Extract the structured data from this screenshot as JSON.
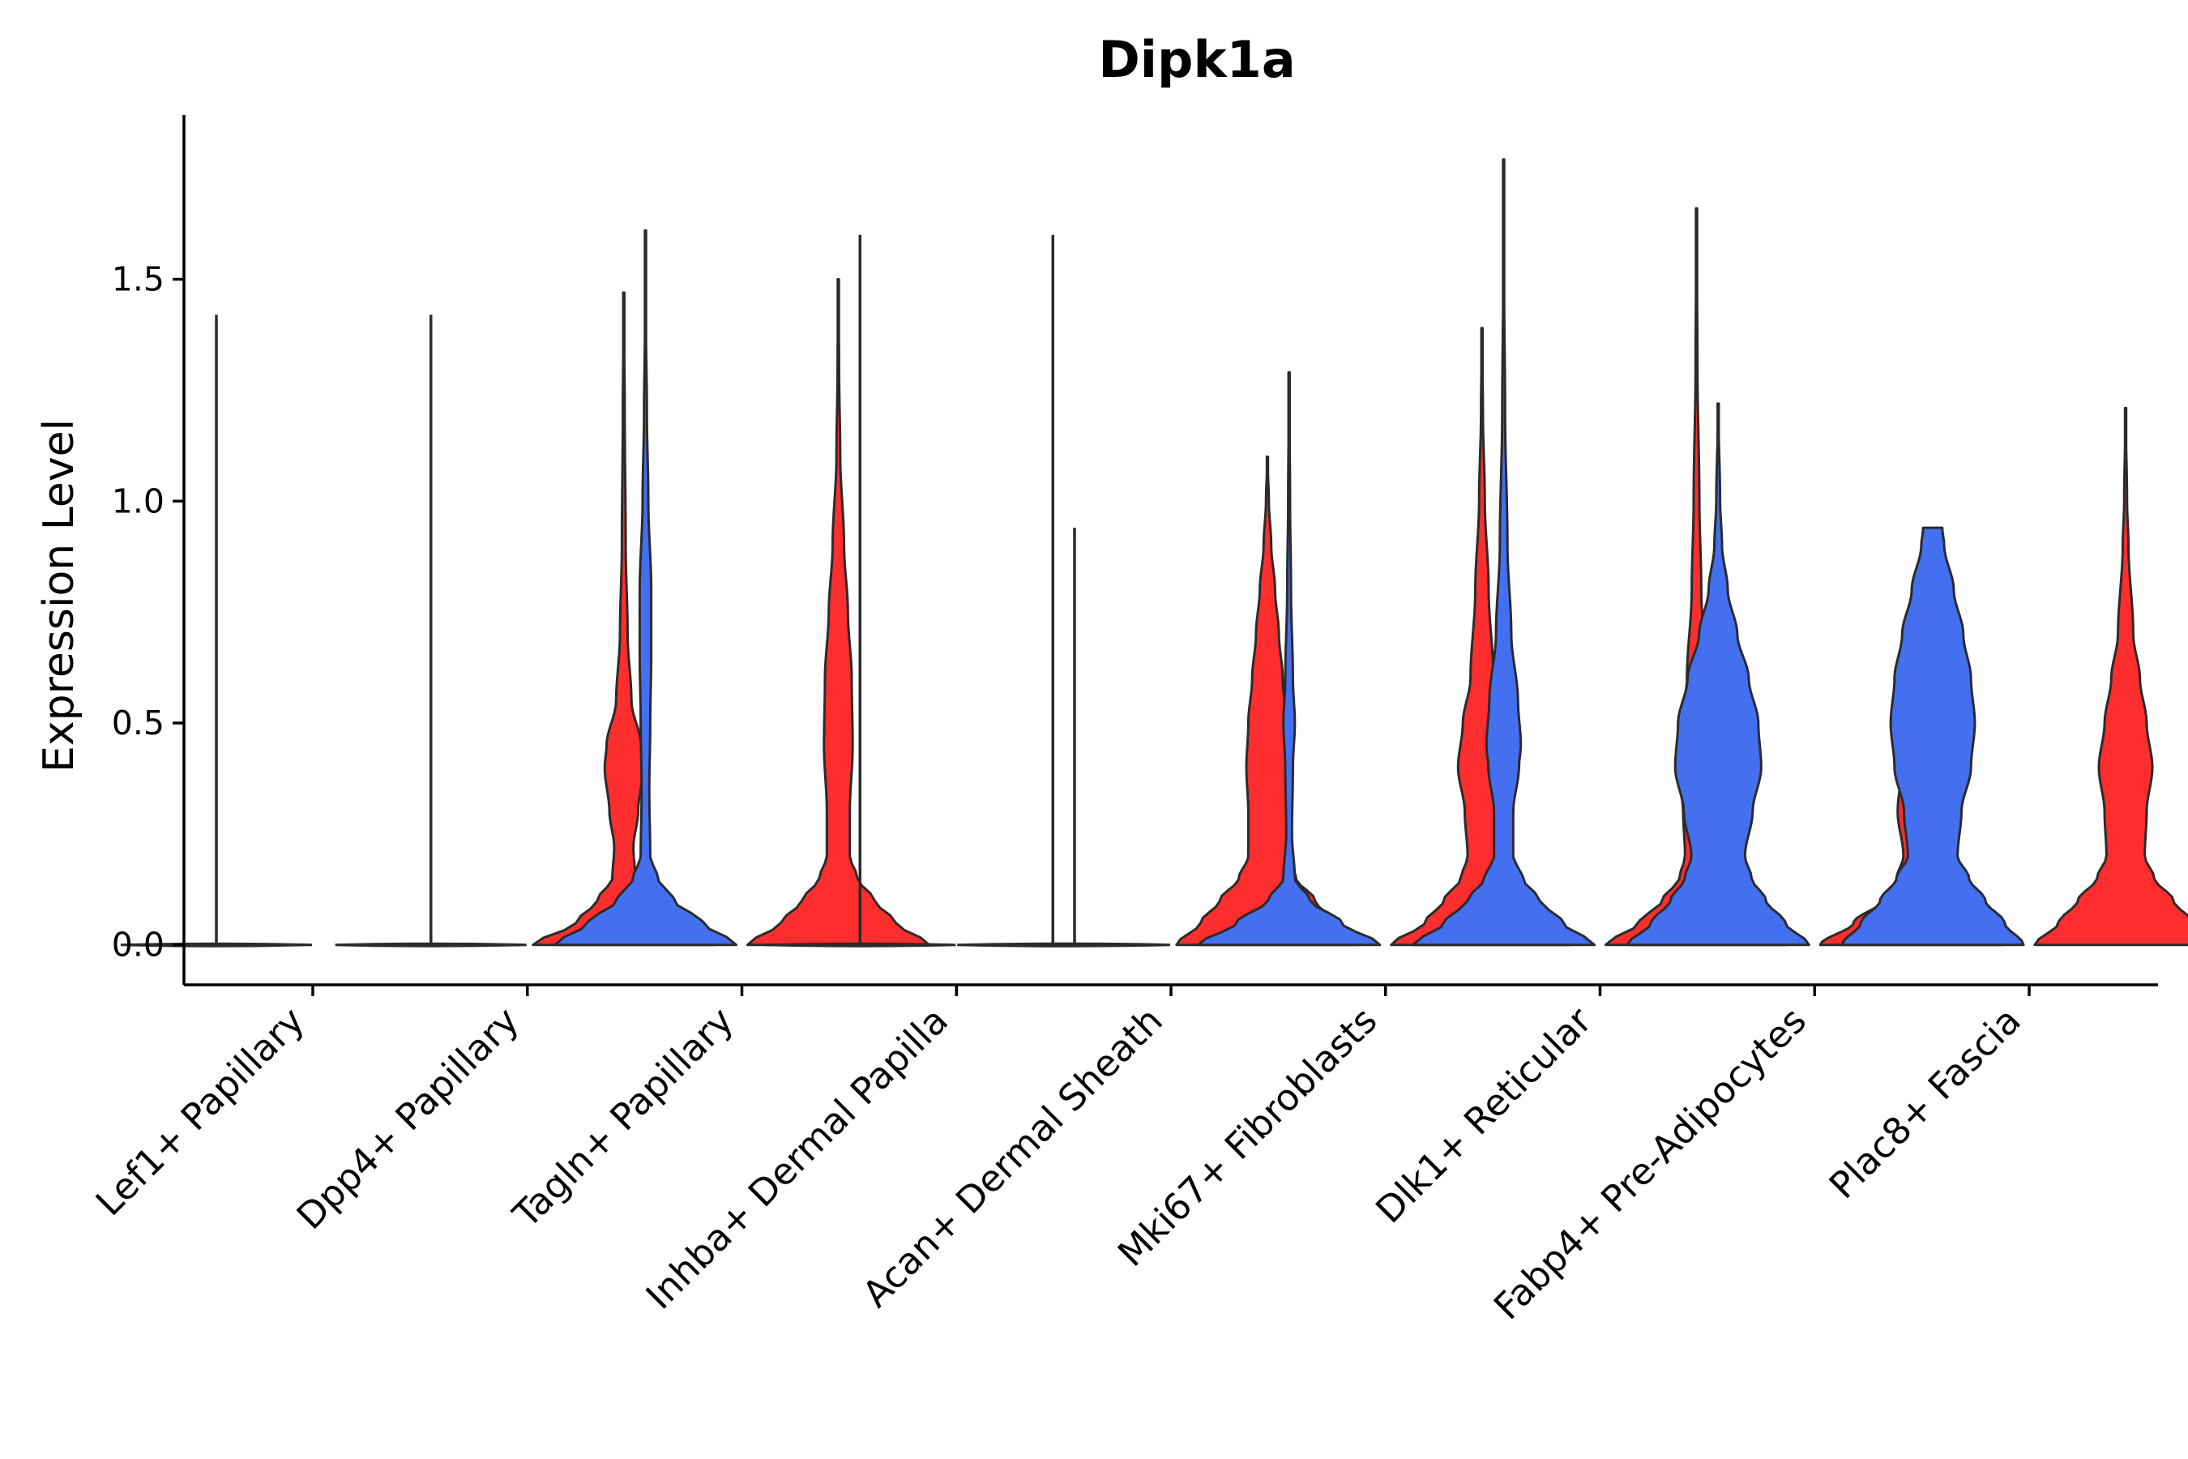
{
  "chart_data": {
    "type": "violin",
    "title": "Dipk1a",
    "xlabel": "",
    "ylabel": "Expression Level",
    "ylim": [
      -0.09,
      1.87
    ],
    "yticks": [
      "0.0",
      "0.5",
      "1.0",
      "1.5"
    ],
    "ytick_values": [
      0,
      0.5,
      1.0,
      1.5
    ],
    "legend": "none",
    "grid": false,
    "groups": [
      "blue",
      "red"
    ],
    "colors": {
      "blue": "#4470ef",
      "red": "#ff2e2e",
      "outline": "#2b2b2b"
    },
    "categories": [
      {
        "label": "Lef1+ Papillary",
        "blue": {
          "max": 1.42,
          "flat": true
        },
        "red": null
      },
      {
        "label": "Dpp4+ Papillary",
        "blue": {
          "max": 1.42,
          "flat": true
        },
        "red": {
          "max": 1.47,
          "profile": [
            [
              0,
              0.95
            ],
            [
              0.05,
              0.5
            ],
            [
              0.1,
              0.28
            ],
            [
              0.15,
              0.12
            ],
            [
              0.22,
              0.1
            ],
            [
              0.3,
              0.15
            ],
            [
              0.4,
              0.2
            ],
            [
              0.45,
              0.18
            ],
            [
              0.55,
              0.08
            ],
            [
              0.7,
              0.04
            ],
            [
              0.9,
              0.02
            ],
            [
              1.2,
              0.01
            ],
            [
              1.47,
              0
            ]
          ]
        }
      },
      {
        "label": "Tagln+ Papillary",
        "blue": {
          "max": 1.61,
          "profile": [
            [
              0,
              0.95
            ],
            [
              0.05,
              0.6
            ],
            [
              0.1,
              0.3
            ],
            [
              0.15,
              0.13
            ],
            [
              0.2,
              0.05
            ],
            [
              0.35,
              0.04
            ],
            [
              0.5,
              0.05
            ],
            [
              0.65,
              0.06
            ],
            [
              0.8,
              0.06
            ],
            [
              1.0,
              0.03
            ],
            [
              1.2,
              0.015
            ],
            [
              1.4,
              0.005
            ],
            [
              1.61,
              0
            ]
          ]
        },
        "red": {
          "max": 1.5,
          "profile": [
            [
              0,
              0.95
            ],
            [
              0.05,
              0.6
            ],
            [
              0.1,
              0.38
            ],
            [
              0.15,
              0.2
            ],
            [
              0.2,
              0.12
            ],
            [
              0.3,
              0.12
            ],
            [
              0.45,
              0.15
            ],
            [
              0.6,
              0.14
            ],
            [
              0.75,
              0.1
            ],
            [
              0.9,
              0.06
            ],
            [
              1.1,
              0.02
            ],
            [
              1.3,
              0.008
            ],
            [
              1.5,
              0
            ]
          ]
        }
      },
      {
        "label": "Inhba+ Dermal Papilla",
        "blue": {
          "max": 1.6,
          "flat": true
        },
        "red": {
          "max": 1.6,
          "flat": true
        }
      },
      {
        "label": "Acan+ Dermal Sheath",
        "blue": {
          "max": 0.94,
          "flat": true
        },
        "red": {
          "max": 1.1,
          "profile": [
            [
              0,
              0.95
            ],
            [
              0.05,
              0.7
            ],
            [
              0.1,
              0.5
            ],
            [
              0.15,
              0.3
            ],
            [
              0.2,
              0.2
            ],
            [
              0.3,
              0.2
            ],
            [
              0.4,
              0.22
            ],
            [
              0.5,
              0.2
            ],
            [
              0.6,
              0.16
            ],
            [
              0.7,
              0.12
            ],
            [
              0.8,
              0.08
            ],
            [
              0.9,
              0.04
            ],
            [
              1.0,
              0.015
            ],
            [
              1.1,
              0
            ]
          ]
        }
      },
      {
        "label": "Mki67+ Fibroblasts",
        "blue": {
          "max": 1.29,
          "profile": [
            [
              0,
              0.95
            ],
            [
              0.05,
              0.55
            ],
            [
              0.1,
              0.22
            ],
            [
              0.15,
              0.06
            ],
            [
              0.25,
              0.03
            ],
            [
              0.4,
              0.04
            ],
            [
              0.5,
              0.06
            ],
            [
              0.6,
              0.04
            ],
            [
              0.8,
              0.02
            ],
            [
              1.0,
              0.01
            ],
            [
              1.29,
              0
            ]
          ]
        },
        "red": {
          "max": 1.39,
          "profile": [
            [
              0,
              0.95
            ],
            [
              0.05,
              0.6
            ],
            [
              0.1,
              0.4
            ],
            [
              0.15,
              0.22
            ],
            [
              0.2,
              0.15
            ],
            [
              0.3,
              0.18
            ],
            [
              0.4,
              0.25
            ],
            [
              0.5,
              0.2
            ],
            [
              0.6,
              0.12
            ],
            [
              0.8,
              0.07
            ],
            [
              1.0,
              0.03
            ],
            [
              1.2,
              0.01
            ],
            [
              1.39,
              0
            ]
          ]
        }
      },
      {
        "label": "Dlk1+ Reticular",
        "blue": {
          "max": 1.77,
          "profile": [
            [
              0,
              0.95
            ],
            [
              0.05,
              0.62
            ],
            [
              0.1,
              0.38
            ],
            [
              0.15,
              0.2
            ],
            [
              0.2,
              0.1
            ],
            [
              0.3,
              0.1
            ],
            [
              0.4,
              0.16
            ],
            [
              0.45,
              0.18
            ],
            [
              0.55,
              0.15
            ],
            [
              0.7,
              0.08
            ],
            [
              0.9,
              0.04
            ],
            [
              1.2,
              0.015
            ],
            [
              1.5,
              0.005
            ],
            [
              1.77,
              0
            ]
          ]
        },
        "red": {
          "max": 1.66,
          "profile": [
            [
              0,
              0.95
            ],
            [
              0.05,
              0.6
            ],
            [
              0.1,
              0.36
            ],
            [
              0.15,
              0.18
            ],
            [
              0.2,
              0.12
            ],
            [
              0.3,
              0.14
            ],
            [
              0.4,
              0.2
            ],
            [
              0.5,
              0.16
            ],
            [
              0.6,
              0.1
            ],
            [
              0.8,
              0.05
            ],
            [
              1.0,
              0.03
            ],
            [
              1.3,
              0.01
            ],
            [
              1.66,
              0
            ]
          ]
        }
      },
      {
        "label": "Fabp4+ Pre-Adipocytes",
        "blue": {
          "max": 1.22,
          "profile": [
            [
              0,
              0.95
            ],
            [
              0.05,
              0.7
            ],
            [
              0.1,
              0.5
            ],
            [
              0.15,
              0.35
            ],
            [
              0.2,
              0.28
            ],
            [
              0.3,
              0.36
            ],
            [
              0.4,
              0.45
            ],
            [
              0.5,
              0.42
            ],
            [
              0.6,
              0.32
            ],
            [
              0.7,
              0.2
            ],
            [
              0.8,
              0.1
            ],
            [
              0.9,
              0.04
            ],
            [
              1.0,
              0.02
            ],
            [
              1.22,
              0
            ]
          ]
        },
        "red": {
          "max": 0.68,
          "profile": [
            [
              0,
              0.95
            ],
            [
              0.05,
              0.6
            ],
            [
              0.1,
              0.3
            ],
            [
              0.15,
              0.15
            ],
            [
              0.2,
              0.08
            ],
            [
              0.3,
              0.14
            ],
            [
              0.4,
              0.1
            ],
            [
              0.5,
              0.14
            ],
            [
              0.6,
              0.08
            ],
            [
              0.68,
              0
            ]
          ]
        }
      },
      {
        "label": "Plac8+ Fascia",
        "blue": {
          "max": 0.94,
          "profile": [
            [
              0,
              0.95
            ],
            [
              0.05,
              0.75
            ],
            [
              0.1,
              0.55
            ],
            [
              0.15,
              0.38
            ],
            [
              0.2,
              0.26
            ],
            [
              0.3,
              0.3
            ],
            [
              0.4,
              0.4
            ],
            [
              0.5,
              0.44
            ],
            [
              0.6,
              0.4
            ],
            [
              0.7,
              0.32
            ],
            [
              0.8,
              0.22
            ],
            [
              0.9,
              0.12
            ],
            [
              0.94,
              0.1
            ]
          ]
        },
        "red": {
          "max": 1.21,
          "profile": [
            [
              0,
              0.95
            ],
            [
              0.05,
              0.7
            ],
            [
              0.1,
              0.5
            ],
            [
              0.15,
              0.3
            ],
            [
              0.2,
              0.2
            ],
            [
              0.3,
              0.22
            ],
            [
              0.4,
              0.28
            ],
            [
              0.5,
              0.22
            ],
            [
              0.6,
              0.15
            ],
            [
              0.7,
              0.08
            ],
            [
              0.9,
              0.03
            ],
            [
              1.0,
              0.015
            ],
            [
              1.21,
              0
            ]
          ]
        }
      }
    ]
  }
}
